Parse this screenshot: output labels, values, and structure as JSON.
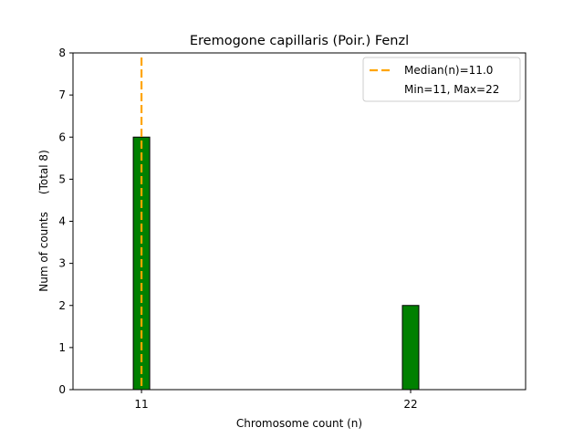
{
  "chart_data": {
    "type": "bar",
    "title": "Eremogone capillaris (Poir.) Fenzl",
    "xlabel": "Chromosome count (n)",
    "ylabel": "Num of counts     (Total 8)",
    "categories": [
      11,
      22
    ],
    "values": [
      6,
      2
    ],
    "xlim": [
      8.2,
      26.7
    ],
    "ylim": [
      0,
      8
    ],
    "x_ticks": [
      "11",
      "22"
    ],
    "y_ticks": [
      "0",
      "1",
      "2",
      "3",
      "4",
      "5",
      "6",
      "7",
      "8"
    ],
    "median": 11.0,
    "legend": {
      "position": "top-right",
      "median_label": "Median(n)=11.0",
      "range_label": "Min=11, Max=22"
    },
    "colors": {
      "bar": "#008000",
      "bar_edge": "#000000",
      "median": "#FFA500"
    }
  }
}
